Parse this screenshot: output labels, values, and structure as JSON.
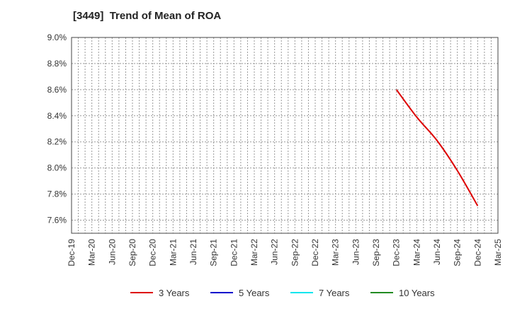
{
  "chart_data": {
    "type": "line",
    "title": "[3449]  Trend of Mean of ROA",
    "xlabel": "",
    "ylabel": "",
    "ylim": [
      7.5,
      9.0
    ],
    "yticks": [
      7.6,
      7.8,
      8.0,
      8.2,
      8.4,
      8.6,
      8.8,
      9.0
    ],
    "ytick_labels": [
      "7.6%",
      "7.8%",
      "8.0%",
      "8.2%",
      "8.4%",
      "8.6%",
      "8.8%",
      "9.0%"
    ],
    "x_categories": [
      "Dec-19",
      "Mar-20",
      "Jun-20",
      "Sep-20",
      "Dec-20",
      "Mar-21",
      "Jun-21",
      "Sep-21",
      "Dec-21",
      "Mar-22",
      "Jun-22",
      "Sep-22",
      "Dec-22",
      "Mar-23",
      "Jun-23",
      "Sep-23",
      "Dec-23",
      "Mar-24",
      "Jun-24",
      "Sep-24",
      "Dec-24",
      "Mar-25"
    ],
    "grid": true,
    "legend_position": "bottom",
    "series": [
      {
        "name": "3 Years",
        "color": "#dd0000",
        "x": [
          "Dec-23",
          "Mar-24",
          "Jun-24",
          "Sep-24",
          "Dec-24"
        ],
        "values": [
          8.6,
          8.39,
          8.21,
          7.98,
          7.71
        ]
      },
      {
        "name": "5 Years",
        "color": "#0000cc",
        "x": [],
        "values": []
      },
      {
        "name": "7 Years",
        "color": "#00e5ee",
        "x": [],
        "values": []
      },
      {
        "name": "10 Years",
        "color": "#228b22",
        "x": [],
        "values": []
      }
    ]
  }
}
